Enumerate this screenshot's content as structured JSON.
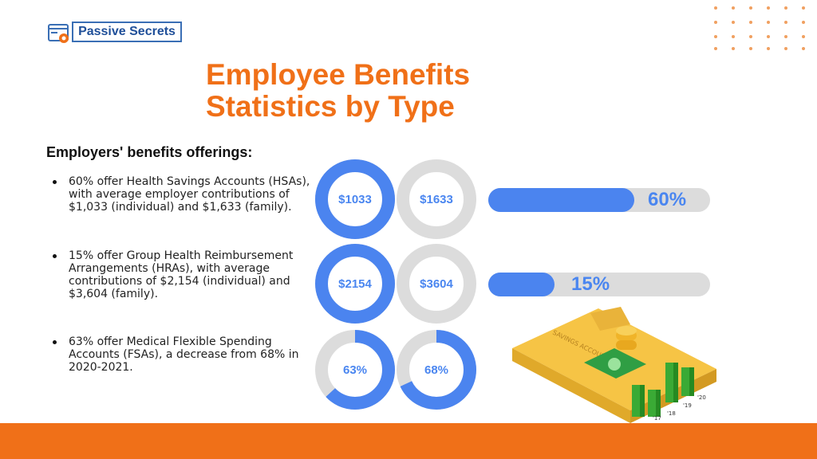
{
  "brand": {
    "name": "Passive Secrets"
  },
  "title": {
    "line1": "Employee Benefits",
    "line2": "Statistics by Type"
  },
  "section": {
    "heading": "Employers' benefits offerings:"
  },
  "bullets": [
    "60% offer Health Savings Accounts (HSAs), with average employer contributions of $1,033 (individual) and $1,633 (family).",
    "15% offer Group Health Reimbursement Arrangements (HRAs), with average contributions of $2,154 (individual) and $3,604 (family).",
    "63% offer Medical Flexible Spending Accounts (FSAs), a decrease from 68% in 2020-2021."
  ],
  "donuts": [
    {
      "label": "$1033",
      "fill": 1.0
    },
    {
      "label": "$1633",
      "fill": 0.0
    },
    {
      "label": "$2154",
      "fill": 1.0
    },
    {
      "label": "$3604",
      "fill": 0.0
    },
    {
      "label": "63%",
      "fill": 0.63
    },
    {
      "label": "68%",
      "fill": 0.68
    }
  ],
  "bars": [
    {
      "label": "60%",
      "value": 60
    },
    {
      "label": "15%",
      "value": 15
    }
  ],
  "illustration": {
    "folder_text": "SAVINGS ACCOUNT",
    "years": [
      "'17",
      "'18",
      "'19",
      "'20"
    ]
  },
  "colors": {
    "accent": "#f07018",
    "blue": "#4b84ef",
    "track": "#dcdcdc",
    "green": "#3aaa35",
    "folder": "#f6c445"
  }
}
